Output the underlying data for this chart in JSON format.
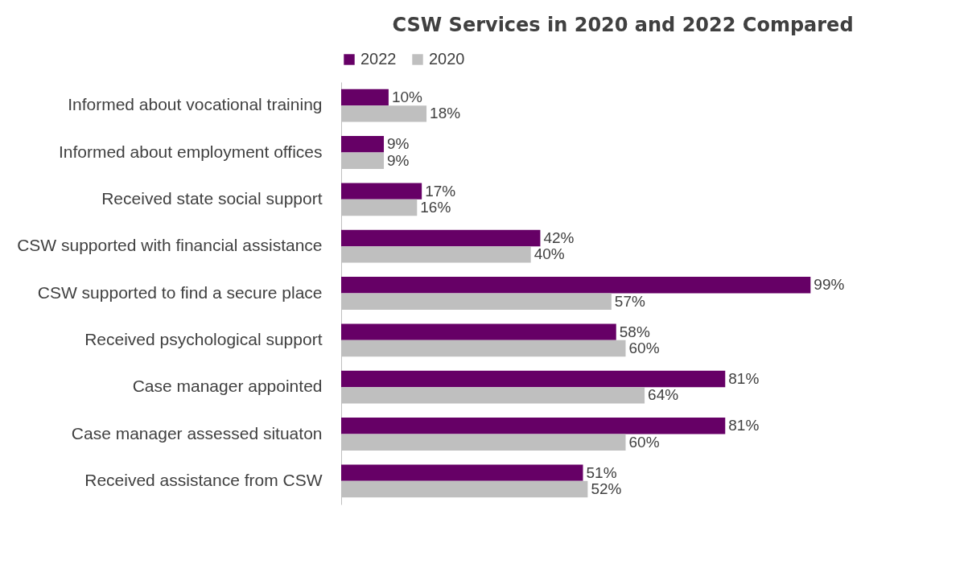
{
  "chart_data": {
    "type": "bar",
    "orientation": "horizontal",
    "title": "CSW Services in 2020 and 2022 Compared",
    "legend": "top",
    "categories": [
      "Informed about vocational training",
      "Informed about employment offices",
      "Received state social support",
      "CSW supported with financial assistance",
      "CSW supported to find a secure place",
      "Received psychological support",
      "Case manager appointed",
      "Case manager assessed situaton",
      "Received assistance from CSW"
    ],
    "series": [
      {
        "name": "2022",
        "color": "#660066",
        "values": [
          10,
          9,
          17,
          42,
          99,
          58,
          81,
          81,
          51
        ],
        "value_labels": [
          "10%",
          "9%",
          "17%",
          "42%",
          "99%",
          "58%",
          "81%",
          "81%",
          "51%"
        ]
      },
      {
        "name": "2020",
        "color": "#bfbfbf",
        "values": [
          18,
          9,
          16,
          40,
          57,
          60,
          64,
          60,
          52
        ],
        "value_labels": [
          "18%",
          "9%",
          "16%",
          "40%",
          "57%",
          "60%",
          "64%",
          "60%",
          "52%"
        ]
      }
    ]
  }
}
